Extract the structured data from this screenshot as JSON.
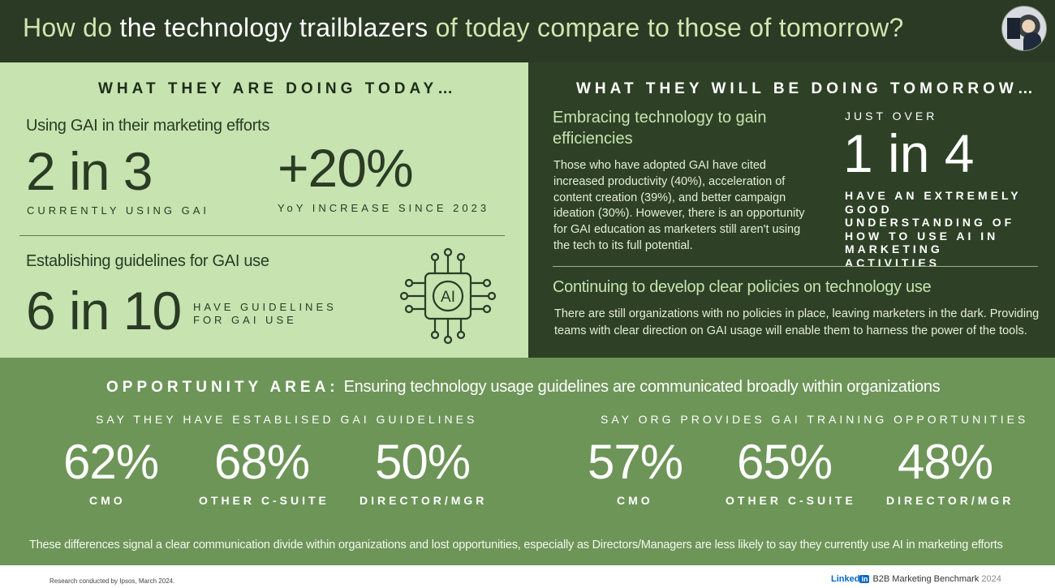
{
  "header": {
    "title_part1": "How do",
    "title_part2": "the technology trailblazers",
    "title_part3": "of today compare to those of tomorrow?"
  },
  "today": {
    "heading": "WHAT THEY ARE DOING TODAY…",
    "gai_use": {
      "subheading": "Using GAI in their marketing efforts",
      "stat1_value": "2 in 3",
      "stat1_caption": "CURRENTLY USING GAI",
      "stat2_value": "+20%",
      "stat2_caption": "YoY INCREASE SINCE 2023"
    },
    "guidelines": {
      "subheading": "Establishing guidelines for GAI use",
      "stat_value": "6 in 10",
      "caption_line1": "HAVE GUIDELINES",
      "caption_line2": "FOR GAI USE",
      "icon_label": "AI"
    }
  },
  "tomorrow": {
    "heading": "WHAT THEY WILL BE DOING TOMORROW…",
    "efficiency": {
      "subheading": "Embracing technology to gain efficiencies",
      "body": "Those who have adopted GAI have cited increased productivity (40%), acceleration of content creation (39%), and better campaign ideation (30%). However, there is an opportunity for GAI education as marketers still aren't using the tech to its full potential."
    },
    "understanding": {
      "pre_label": "JUST OVER",
      "stat_value": "1 in 4",
      "caption": "HAVE AN EXTREMELY GOOD UNDERSTANDING OF HOW TO USE AI IN MARKETING ACTIVITIES"
    },
    "policies": {
      "subheading": "Continuing to develop clear policies on technology use",
      "body": "There are still organizations with no policies in place, leaving marketers in the dark. Providing teams with clear direction on GAI usage will enable them to harness the power of the tools."
    }
  },
  "opportunity": {
    "label": "OPPORTUNITY AREA:",
    "title": "Ensuring technology usage guidelines are communicated broadly within organizations",
    "groups": [
      {
        "heading": "SAY THEY HAVE ESTABLISED GAI GUIDELINES",
        "stats": [
          {
            "value": "62%",
            "label": "CMO"
          },
          {
            "value": "68%",
            "label": "OTHER C-SUITE"
          },
          {
            "value": "50%",
            "label": "DIRECTOR/MGR"
          }
        ]
      },
      {
        "heading": "SAY ORG PROVIDES GAI TRAINING OPPORTUNITIES",
        "stats": [
          {
            "value": "57%",
            "label": "CMO"
          },
          {
            "value": "65%",
            "label": "OTHER C-SUITE"
          },
          {
            "value": "48%",
            "label": "DIRECTOR/MGR"
          }
        ]
      }
    ],
    "footnote": "These differences signal a clear communication divide within organizations and lost opportunities, especially as Directors/Managers are less likely to say they currently use AI in marketing efforts"
  },
  "footer": {
    "source": "Research conducted by Ipsos, March 2024.",
    "brand_word": "Linked",
    "brand_box": "in",
    "benchmark": "B2B Marketing Benchmark",
    "year": "2024"
  },
  "colors": {
    "header_bg": "#2a3a24",
    "left_panel_bg": "#c6e3b0",
    "right_panel_bg": "#2e4126",
    "opportunity_bg": "#6d9558",
    "linkedin_blue": "#0a66c2"
  }
}
